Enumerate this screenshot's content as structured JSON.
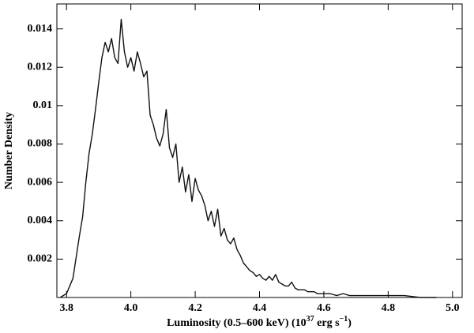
{
  "chart_data": {
    "type": "line",
    "x_label_parts": [
      {
        "text": "Luminosity (0.5–600 keV) (10"
      },
      {
        "text": "37",
        "sup": true
      },
      {
        "text": " erg s"
      },
      {
        "text": "−1",
        "sup": true
      },
      {
        "text": ")"
      }
    ],
    "y_label": "Number Density",
    "xlim": [
      3.77,
      5.03
    ],
    "ylim": [
      0,
      0.0153
    ],
    "xticks": [
      3.8,
      {
        "value": 4,
        "label": "4.0"
      },
      4.2,
      4.4,
      4.6,
      4.8,
      {
        "value": 5,
        "label": "5.0"
      }
    ],
    "yticks": [
      0.002,
      0.004,
      0.006,
      0.008,
      0.01,
      0.012,
      0.014
    ],
    "grid": false,
    "series": [
      {
        "color": "#111111",
        "x": [
          3.78,
          3.8,
          3.82,
          3.84,
          3.85,
          3.86,
          3.87,
          3.88,
          3.89,
          3.9,
          3.91,
          3.92,
          3.93,
          3.94,
          3.95,
          3.96,
          3.97,
          3.98,
          3.99,
          4.0,
          4.01,
          4.02,
          4.03,
          4.04,
          4.05,
          4.06,
          4.07,
          4.08,
          4.09,
          4.1,
          4.11,
          4.12,
          4.13,
          4.14,
          4.15,
          4.16,
          4.17,
          4.18,
          4.19,
          4.2,
          4.21,
          4.22,
          4.23,
          4.24,
          4.25,
          4.26,
          4.27,
          4.28,
          4.29,
          4.3,
          4.31,
          4.32,
          4.33,
          4.34,
          4.35,
          4.36,
          4.37,
          4.38,
          4.39,
          4.4,
          4.41,
          4.42,
          4.43,
          4.44,
          4.45,
          4.46,
          4.47,
          4.48,
          4.49,
          4.5,
          4.51,
          4.52,
          4.53,
          4.54,
          4.55,
          4.56,
          4.57,
          4.58,
          4.6,
          4.62,
          4.64,
          4.66,
          4.68,
          4.7,
          4.72,
          4.75,
          4.8,
          4.85,
          4.9,
          4.95
        ],
        "values": [
          0,
          0.0002,
          0.001,
          0.0032,
          0.0042,
          0.006,
          0.0075,
          0.0085,
          0.0098,
          0.0112,
          0.0125,
          0.0133,
          0.0128,
          0.0135,
          0.0125,
          0.0122,
          0.0145,
          0.0128,
          0.012,
          0.0125,
          0.0118,
          0.0128,
          0.0122,
          0.0115,
          0.0118,
          0.0095,
          0.009,
          0.0083,
          0.0079,
          0.0085,
          0.0098,
          0.0078,
          0.0073,
          0.008,
          0.006,
          0.0068,
          0.0055,
          0.0064,
          0.005,
          0.0062,
          0.0056,
          0.0053,
          0.0048,
          0.004,
          0.0045,
          0.0037,
          0.0046,
          0.0032,
          0.0036,
          0.003,
          0.0028,
          0.0031,
          0.0025,
          0.0022,
          0.0018,
          0.0016,
          0.0014,
          0.0013,
          0.0011,
          0.0012,
          0.001,
          0.0009,
          0.0011,
          0.0009,
          0.0012,
          0.0008,
          0.0007,
          0.0006,
          0.0006,
          0.0008,
          0.0005,
          0.0004,
          0.0004,
          0.0004,
          0.0003,
          0.0003,
          0.0003,
          0.0002,
          0.0002,
          0.0002,
          0.0001,
          0.0002,
          0.0001,
          0.0001,
          0.0001,
          0.0001,
          0.0001,
          0.0001,
          0,
          0
        ]
      }
    ]
  }
}
